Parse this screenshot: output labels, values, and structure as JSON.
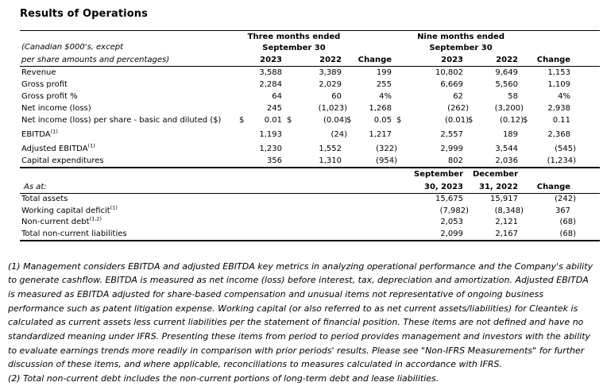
{
  "title": "Results of Operations",
  "currency_symbol": "$",
  "table1": {
    "caption_line1": "(Canadian $000's, except",
    "caption_line2": "per share amounts and percentages)",
    "group_three_months": {
      "line1": "Three months ended",
      "line2": "September 30"
    },
    "group_nine_months": {
      "line1": "Nine months ended",
      "line2": "September 30"
    },
    "col_headers": [
      "2023",
      "2022",
      "Change",
      "2023",
      "2022",
      "Change"
    ],
    "rows": [
      {
        "label": "Revenue",
        "sup": "",
        "v": [
          "3,588",
          "3,389",
          "199",
          "10,802",
          "9,649",
          "1,153"
        ]
      },
      {
        "label": "Gross profit",
        "sup": "",
        "v": [
          "2,284",
          "2,029",
          "255",
          "6,669",
          "5,560",
          "1,109"
        ]
      },
      {
        "label": "Gross profit %",
        "sup": "",
        "v": [
          "64",
          "60",
          "4%",
          "62",
          "58",
          "4%"
        ]
      },
      {
        "label": "Net income (loss)",
        "sup": "",
        "v": [
          "245",
          "(1,023)",
          "1,268",
          "(262)",
          "(3,200)",
          "2,938"
        ]
      },
      {
        "label": "Net income (loss) per share - basic and diluted ($)",
        "sup": "",
        "v": [
          "0.01",
          "(0.04)",
          "0.05",
          "(0.01)",
          "(0.12)",
          "0.11"
        ]
      },
      {
        "label": "EBITDA",
        "sup": "(1)",
        "v": [
          "1,193",
          "(24)",
          "1,217",
          "2,557",
          "189",
          "2,368"
        ]
      },
      {
        "label": "Adjusted EBITDA",
        "sup": "(1)",
        "v": [
          "1,230",
          "1,552",
          "(322)",
          "2,999",
          "3,544",
          "(545)"
        ]
      },
      {
        "label": "Capital expenditures",
        "sup": "",
        "v": [
          "356",
          "1,310",
          "(954)",
          "802",
          "2,036",
          "(1,234)"
        ]
      }
    ]
  },
  "table2": {
    "row_label": "As at:",
    "col1": {
      "line1": "September",
      "line2": "30, 2023"
    },
    "col2": {
      "line1": "December",
      "line2": "31, 2022"
    },
    "change_header": "Change",
    "rows": [
      {
        "label": "Total assets",
        "sup": "",
        "v": [
          "15,675",
          "15,917",
          "(242)"
        ]
      },
      {
        "label": "Working capital deficit",
        "sup": "(1)",
        "v": [
          "(7,982)",
          "(8,348)",
          "367"
        ]
      },
      {
        "label": "Non-current debt",
        "sup": "(1,2)",
        "v": [
          "2,053",
          "2,121",
          "(68)"
        ]
      },
      {
        "label": "Total non-current liabilities",
        "sup": "",
        "v": [
          "2,099",
          "2,167",
          "(68)"
        ]
      }
    ]
  },
  "footnotes": [
    "(1) Management considers EBITDA and adjusted EBITDA key metrics in analyzing operational performance and the Company's ability to generate cashflow. EBITDA is measured as net income (loss) before interest, tax, depreciation and amortization. Adjusted EBITDA is measured as EBITDA adjusted for share-based compensation and unusual items not representative of ongoing business performance such as patent litigation expense. Working capital (or also referred to as net current assets/liabilities) for Cleantek is calculated as current assets less current liabilities per the statement of financial position. These items are not defined and have no standardized meaning under IFRS. Presenting these items from period to period provides management and investors with the ability to evaluate earnings trends more readily in comparison with prior periods' results. Please see \"Non-IFRS Measurements\" for further discussion of these items, and where applicable, reconciliations to measures calculated in accordance with IFRS.",
    "(2) Total non-current debt includes the non-current portions of long-term debt and lease liabilities."
  ]
}
